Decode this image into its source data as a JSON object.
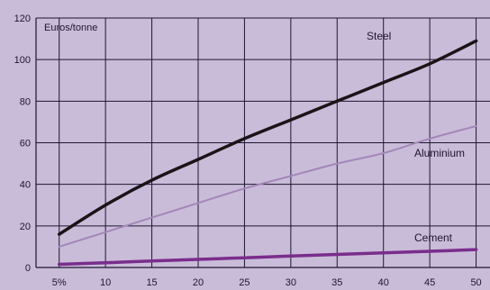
{
  "chart_data": {
    "type": "line",
    "ylabel": "Euros/tonne",
    "ylim": [
      0,
      120
    ],
    "yticks": [
      "0",
      "20",
      "40",
      "60",
      "80",
      "100",
      "120"
    ],
    "ytick_values": [
      0,
      20,
      40,
      60,
      80,
      100,
      120
    ],
    "xlim": [
      2.5,
      51.5
    ],
    "xticks": [
      "5%",
      "10",
      "15",
      "20",
      "25",
      "30",
      "35",
      "40",
      "45",
      "50"
    ],
    "xtick_values": [
      5,
      10,
      15,
      20,
      25,
      30,
      35,
      40,
      45,
      50
    ],
    "grid": true,
    "colors": {
      "background": "#c9bcd9",
      "grid": "#1e1530"
    },
    "series": [
      {
        "name": "Steel",
        "color": "#1a1418",
        "x": [
          5,
          10,
          15,
          20,
          25,
          30,
          35,
          40,
          45,
          50
        ],
        "values": [
          16,
          30,
          42,
          52,
          62,
          71,
          80,
          89,
          98,
          109
        ]
      },
      {
        "name": "Aluminium",
        "color": "#a387b8",
        "x": [
          5,
          10,
          15,
          20,
          25,
          30,
          35,
          40,
          45,
          50
        ],
        "values": [
          10,
          17,
          24,
          31,
          38,
          44,
          50,
          55,
          62,
          68
        ]
      },
      {
        "name": "Cement",
        "color": "#7a2d8c",
        "x": [
          5,
          10,
          15,
          20,
          25,
          30,
          35,
          40,
          45,
          50
        ],
        "values": [
          1.5,
          2.3,
          3.1,
          3.9,
          4.7,
          5.5,
          6.3,
          7.0,
          7.8,
          8.6
        ]
      }
    ]
  }
}
